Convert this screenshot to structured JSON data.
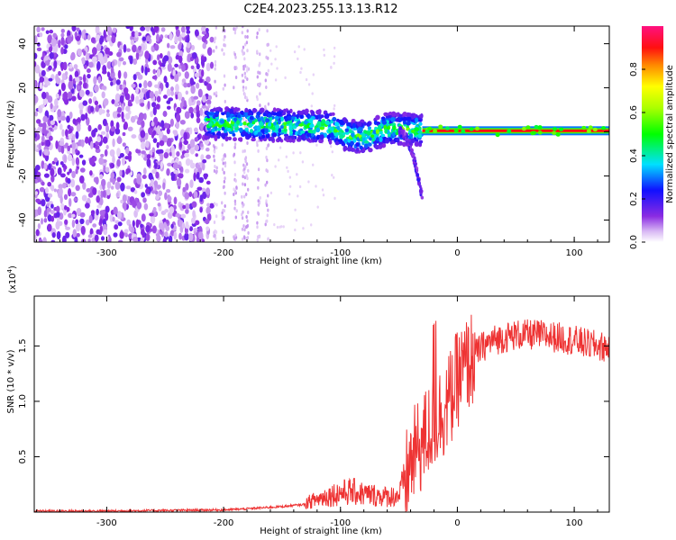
{
  "title": "C2E4.2023.255.13.13.R12",
  "chart_data": [
    {
      "type": "heatmap",
      "panel": "spectrogram",
      "xlabel": "Height of straight line (km)",
      "ylabel": "Frequency (Hz)",
      "xlim": [
        -362,
        130
      ],
      "ylim": [
        -50,
        48
      ],
      "x_ticks": [
        -300,
        -200,
        -100,
        0,
        100
      ],
      "x_tick_labels": [
        "-300",
        "-200",
        "-100",
        "0",
        "100"
      ],
      "y_ticks": [
        40,
        20,
        0,
        -20,
        -40
      ],
      "y_tick_labels": [
        "40",
        "20",
        "0",
        "-20",
        "-40"
      ],
      "colorbar": {
        "label": "Normalized spectral amplitude",
        "range": [
          0,
          1
        ],
        "ticks": [
          0.0,
          0.2,
          0.4,
          0.6,
          0.8
        ],
        "tick_labels": [
          "0.0",
          "0.2",
          "0.4",
          "0.6",
          "0.8"
        ],
        "colormap": "rainbow (white-violet-blue-cyan-green-yellow-red-magenta)"
      },
      "features": [
        {
          "description": "broadband noise",
          "x_range": [
            -362,
            -210
          ],
          "freq_range": [
            -50,
            48
          ],
          "amplitude": 0.1
        },
        {
          "description": "sparse noise streaks",
          "x_range": [
            -210,
            -160
          ],
          "freq_range": [
            -50,
            48
          ],
          "amplitude": 0.05
        },
        {
          "description": "Doppler signal band",
          "x_range": [
            -215,
            -30
          ],
          "freq_center_at_ends": [
            4,
            1
          ],
          "amplitude": 0.4
        },
        {
          "description": "secondary branch",
          "x_range": [
            -50,
            -30
          ],
          "freq_range": [
            0,
            -30
          ],
          "amplitude": 0.15
        },
        {
          "description": "steady carrier line",
          "x_range": [
            -30,
            130
          ],
          "freq": 0.5,
          "amplitude": 0.9
        }
      ]
    },
    {
      "type": "line",
      "panel": "snr",
      "xlabel": "Height of straight line (km)",
      "ylabel": "SNR (10 * v/v)",
      "y_multiplier": "(x10",
      "y_multiplier_exp": "4",
      "y_multiplier_close": ")",
      "xlim": [
        -362,
        130
      ],
      "ylim": [
        0,
        1.95
      ],
      "x_ticks": [
        -300,
        -200,
        -100,
        0,
        100
      ],
      "x_tick_labels": [
        "-300",
        "-200",
        "-100",
        "0",
        "100"
      ],
      "y_ticks": [
        0.5,
        1.0,
        1.5
      ],
      "y_tick_labels": [
        "0.5",
        "1.0",
        "1.5"
      ],
      "series": [
        {
          "color": "#ee3333",
          "x": [
            -362,
            -300,
            -250,
            -200,
            -180,
            -150,
            -130,
            -120,
            -110,
            -100,
            -90,
            -80,
            -70,
            -60,
            -50,
            -45,
            -40,
            -35,
            -30,
            -25,
            -20,
            -15,
            -10,
            -5,
            0,
            10,
            20,
            30,
            50,
            70,
            90,
            100,
            110,
            120,
            130
          ],
          "y": [
            0.01,
            0.01,
            0.015,
            0.02,
            0.03,
            0.05,
            0.07,
            0.1,
            0.13,
            0.15,
            0.16,
            0.14,
            0.13,
            0.12,
            0.13,
            0.25,
            0.45,
            0.55,
            0.62,
            0.72,
            0.8,
            0.88,
            0.95,
            1.05,
            1.2,
            1.35,
            1.48,
            1.55,
            1.6,
            1.6,
            1.57,
            1.55,
            1.52,
            1.5,
            1.48
          ]
        }
      ]
    }
  ]
}
